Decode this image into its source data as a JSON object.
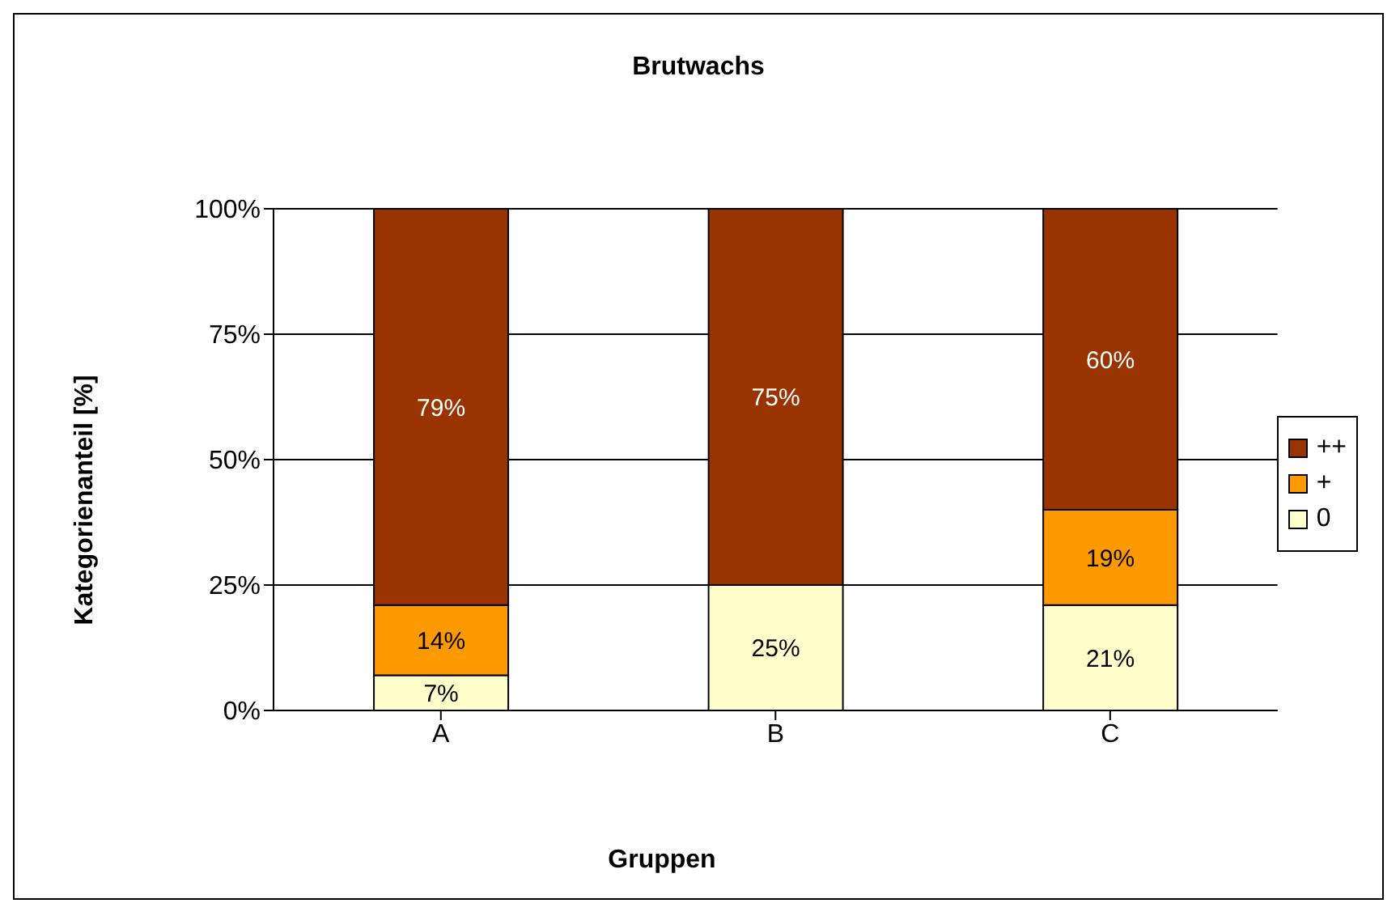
{
  "chart_data": {
    "type": "bar",
    "title": "Brutwachs",
    "xlabel": "Gruppen",
    "ylabel": "Kategorienanteil [%]",
    "categories": [
      "A",
      "B",
      "C"
    ],
    "stacked": true,
    "ylim": [
      0,
      100
    ],
    "yticks": [
      {
        "value": 0,
        "label": "0%"
      },
      {
        "value": 25,
        "label": "25%"
      },
      {
        "value": 50,
        "label": "50%"
      },
      {
        "value": 75,
        "label": "75%"
      },
      {
        "value": 100,
        "label": "100%"
      }
    ],
    "grid": "y",
    "legend": "right",
    "series": [
      {
        "name": "0",
        "color": "#ffffcc",
        "values": [
          7,
          25,
          21
        ],
        "value_labels": [
          "7%",
          "25%",
          "21%"
        ]
      },
      {
        "name": "+",
        "color": "#ff9900",
        "values": [
          14,
          0,
          19
        ],
        "value_labels": [
          "14%",
          null,
          "19%"
        ]
      },
      {
        "name": "++",
        "color": "#993300",
        "values": [
          79,
          75,
          60
        ],
        "value_labels": [
          "79%",
          "75%",
          "60%"
        ]
      }
    ]
  }
}
